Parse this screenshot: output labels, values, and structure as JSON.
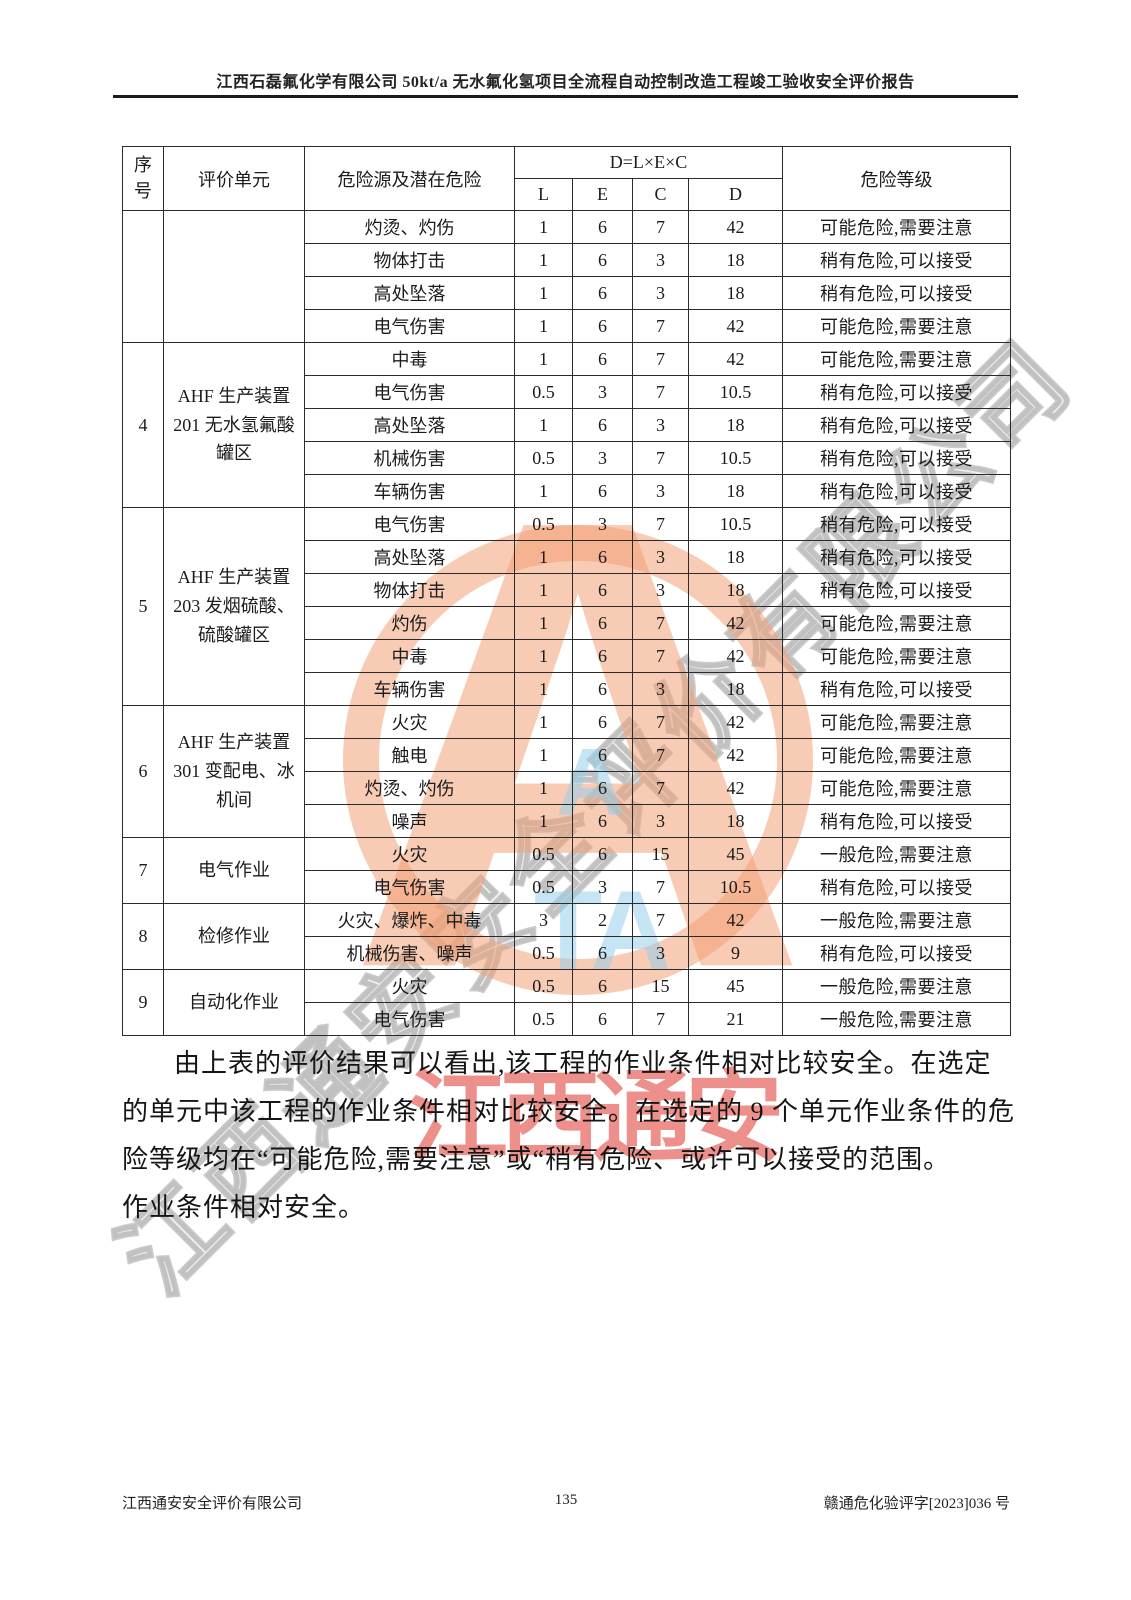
{
  "page": {
    "header_title": "江西石磊氟化学有限公司 50kt/a 无水氟化氢项目全流程自动控制改造工程竣工验收安全评价报告",
    "footer": {
      "left": "江西通安安全评价有限公司",
      "page_number": "135",
      "right": "赣通危化验评字[2023]036 号"
    }
  },
  "table": {
    "headers": {
      "seq": "序号",
      "unit": "评价单元",
      "hazard": "危险源及潜在危险",
      "formula": "D=L×E×C",
      "l": "L",
      "e": "E",
      "c": "C",
      "d": "D",
      "risk": "危险等级"
    },
    "sections": [
      {
        "seq": "",
        "unit": "",
        "rows": [
          {
            "hazard": "灼烫、灼伤",
            "l": "1",
            "e": "6",
            "c": "7",
            "d": "42",
            "risk": "可能危险,需要注意"
          },
          {
            "hazard": "物体打击",
            "l": "1",
            "e": "6",
            "c": "3",
            "d": "18",
            "risk": "稍有危险,可以接受"
          },
          {
            "hazard": "高处坠落",
            "l": "1",
            "e": "6",
            "c": "3",
            "d": "18",
            "risk": "稍有危险,可以接受"
          },
          {
            "hazard": "电气伤害",
            "l": "1",
            "e": "6",
            "c": "7",
            "d": "42",
            "risk": "可能危险,需要注意"
          }
        ]
      },
      {
        "seq": "4",
        "unit": "AHF 生产装置 201 无水氢氟酸罐区",
        "rows": [
          {
            "hazard": "中毒",
            "l": "1",
            "e": "6",
            "c": "7",
            "d": "42",
            "risk": "可能危险,需要注意"
          },
          {
            "hazard": "电气伤害",
            "l": "0.5",
            "e": "3",
            "c": "7",
            "d": "10.5",
            "risk": "稍有危险,可以接受"
          },
          {
            "hazard": "高处坠落",
            "l": "1",
            "e": "6",
            "c": "3",
            "d": "18",
            "risk": "稍有危险,可以接受"
          },
          {
            "hazard": "机械伤害",
            "l": "0.5",
            "e": "3",
            "c": "7",
            "d": "10.5",
            "risk": "稍有危险,可以接受"
          },
          {
            "hazard": "车辆伤害",
            "l": "1",
            "e": "6",
            "c": "3",
            "d": "18",
            "risk": "稍有危险,可以接受"
          }
        ]
      },
      {
        "seq": "5",
        "unit": "AHF 生产装置 203 发烟硫酸、硫酸罐区",
        "rows": [
          {
            "hazard": "电气伤害",
            "l": "0.5",
            "e": "3",
            "c": "7",
            "d": "10.5",
            "risk": "稍有危险,可以接受"
          },
          {
            "hazard": "高处坠落",
            "l": "1",
            "e": "6",
            "c": "3",
            "d": "18",
            "risk": "稍有危险,可以接受"
          },
          {
            "hazard": "物体打击",
            "l": "1",
            "e": "6",
            "c": "3",
            "d": "18",
            "risk": "稍有危险,可以接受"
          },
          {
            "hazard": "灼伤",
            "l": "1",
            "e": "6",
            "c": "7",
            "d": "42",
            "risk": "可能危险,需要注意"
          },
          {
            "hazard": "中毒",
            "l": "1",
            "e": "6",
            "c": "7",
            "d": "42",
            "risk": "可能危险,需要注意"
          },
          {
            "hazard": "车辆伤害",
            "l": "1",
            "e": "6",
            "c": "3",
            "d": "18",
            "risk": "稍有危险,可以接受"
          }
        ]
      },
      {
        "seq": "6",
        "unit": "AHF 生产装置 301 变配电、冰机间",
        "rows": [
          {
            "hazard": "火灾",
            "l": "1",
            "e": "6",
            "c": "7",
            "d": "42",
            "risk": "可能危险,需要注意"
          },
          {
            "hazard": "触电",
            "l": "1",
            "e": "6",
            "c": "7",
            "d": "42",
            "risk": "可能危险,需要注意"
          },
          {
            "hazard": "灼烫、灼伤",
            "l": "1",
            "e": "6",
            "c": "7",
            "d": "42",
            "risk": "可能危险,需要注意"
          },
          {
            "hazard": "噪声",
            "l": "1",
            "e": "6",
            "c": "3",
            "d": "18",
            "risk": "稍有危险,可以接受"
          }
        ]
      },
      {
        "seq": "7",
        "unit": "电气作业",
        "rows": [
          {
            "hazard": "火灾",
            "l": "0.5",
            "e": "6",
            "c": "15",
            "d": "45",
            "risk": "一般危险,需要注意"
          },
          {
            "hazard": "电气伤害",
            "l": "0.5",
            "e": "3",
            "c": "7",
            "d": "10.5",
            "risk": "稍有危险,可以接受"
          }
        ]
      },
      {
        "seq": "8",
        "unit": "检修作业",
        "rows": [
          {
            "hazard": "火灾、爆炸、中毒",
            "l": "3",
            "e": "2",
            "c": "7",
            "d": "42",
            "risk": "一般危险,需要注意"
          },
          {
            "hazard": "机械伤害、噪声",
            "l": "0.5",
            "e": "6",
            "c": "3",
            "d": "9",
            "risk": "稍有危险,可以接受"
          }
        ]
      },
      {
        "seq": "9",
        "unit": "自动化作业",
        "rows": [
          {
            "hazard": "火灾",
            "l": "0.5",
            "e": "6",
            "c": "15",
            "d": "45",
            "risk": "一般危险,需要注意"
          },
          {
            "hazard": "电气伤害",
            "l": "0.5",
            "e": "6",
            "c": "7",
            "d": "21",
            "risk": "一般危险,需要注意"
          }
        ]
      }
    ]
  },
  "paragraph": {
    "lines": [
      "由上表的评价结果可以看出,该工程的作业条件相对比较安全。在选定",
      "的单元中该工程的作业条件相对比较安全。在选定的 9 个单元作业条件的危",
      "险等级均在“可能危险,需要注意”或“稍有危险、或许可以接受的范围。",
      "作业条件相对安全。"
    ]
  },
  "watermarks": {
    "diagonal_text": "江西通安安全评价有限公司",
    "red_text": "江西通安",
    "logo_letter": "A",
    "logo_sub_letters": "TA",
    "colors": {
      "logo_orange": "#F3A076",
      "stamp_red": "#DE342E",
      "logo_blue": "#96CDEB",
      "diagonal_gray": "#8C8C8C"
    }
  }
}
